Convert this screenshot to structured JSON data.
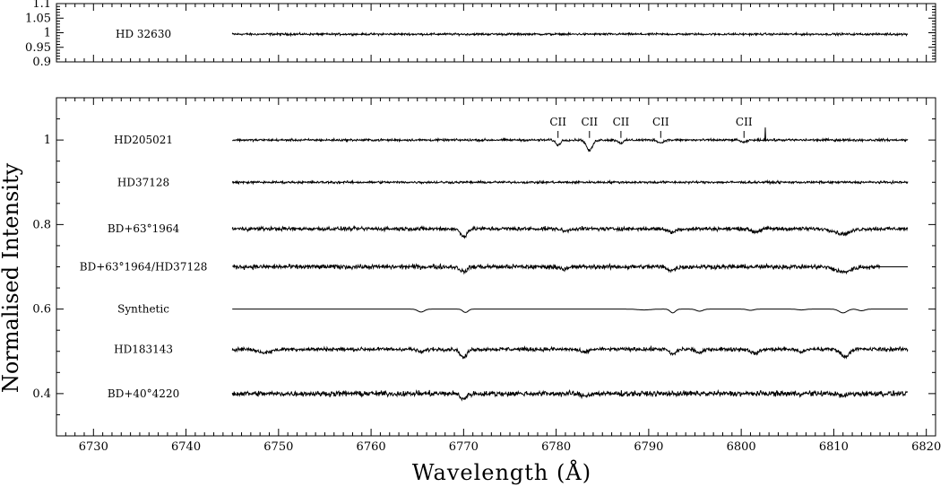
{
  "chart_data": [
    {
      "type": "line",
      "panel": "top",
      "xlim": [
        6726,
        6821
      ],
      "ylim": [
        0.9,
        1.1
      ],
      "yticks": [
        0.9,
        0.95,
        1,
        1.05,
        1.1
      ],
      "ytick_labels": [
        "0.9",
        "0.95",
        "1",
        "1.05",
        "1.1"
      ],
      "xticks": [
        6730,
        6740,
        6750,
        6760,
        6770,
        6780,
        6790,
        6800,
        6810,
        6820
      ],
      "grid": false,
      "series": [
        {
          "name": "HD 32630",
          "x_range": [
            6745,
            6818
          ],
          "level": 0.995,
          "noise": 0.004,
          "dips": []
        }
      ]
    },
    {
      "type": "line",
      "panel": "main",
      "title": "",
      "xlabel": "Wavelength (Å)",
      "ylabel": "Normalised Intensity",
      "xlim": [
        6726,
        6821
      ],
      "ylim": [
        0.3,
        1.1
      ],
      "xticks": [
        6730,
        6740,
        6750,
        6760,
        6770,
        6780,
        6790,
        6800,
        6810,
        6820
      ],
      "xtick_labels": [
        "6730",
        "6740",
        "6750",
        "6760",
        "6770",
        "6780",
        "6790",
        "6800",
        "6810",
        "6820"
      ],
      "yticks": [
        0.4,
        0.6,
        0.8,
        1
      ],
      "ytick_labels": [
        "0.4",
        "0.6",
        "0.8",
        "1"
      ],
      "grid": false,
      "annotations": [
        {
          "text": "CII",
          "x": 6780.2,
          "tick_top": 1.03,
          "tick_bottom": 1.005
        },
        {
          "text": "CII",
          "x": 6783.6,
          "tick_top": 1.03,
          "tick_bottom": 1.005
        },
        {
          "text": "CII",
          "x": 6787.0,
          "tick_top": 1.03,
          "tick_bottom": 1.005
        },
        {
          "text": "CII",
          "x": 6791.3,
          "tick_top": 1.03,
          "tick_bottom": 1.005
        },
        {
          "text": "CII",
          "x": 6800.3,
          "tick_top": 1.03,
          "tick_bottom": 1.005
        }
      ],
      "series": [
        {
          "name": "HD205021",
          "x_range": [
            6745,
            6818
          ],
          "level": 1.0,
          "noise": 0.003,
          "dips": [
            [
              6780.2,
              0.012,
              0.35
            ],
            [
              6783.6,
              0.025,
              0.45
            ],
            [
              6787.0,
              0.007,
              0.4
            ],
            [
              6791.3,
              0.007,
              0.4
            ],
            [
              6800.3,
              0.006,
              0.4
            ]
          ],
          "spikes": [
            [
              6802.6,
              0.03
            ]
          ]
        },
        {
          "name": "HD37128",
          "x_range": [
            6745,
            6818
          ],
          "level": 0.9,
          "noise": 0.003,
          "dips": []
        },
        {
          "name": "BD+63°1964",
          "x_range": [
            6745,
            6818
          ],
          "level": 0.79,
          "noise": 0.005,
          "dips": [
            [
              6770.0,
              0.018,
              0.5
            ],
            [
              6781.0,
              0.006,
              0.5
            ],
            [
              6792.5,
              0.008,
              0.6
            ],
            [
              6801.5,
              0.007,
              0.6
            ],
            [
              6811.0,
              0.012,
              1.2
            ]
          ]
        },
        {
          "name": "BD+63°1964/HD37128",
          "x_range": [
            6745,
            6818
          ],
          "level": 0.7,
          "noise": 0.006,
          "flat_from": 6815,
          "dips": [
            [
              6770.0,
              0.012,
              0.5
            ],
            [
              6781.0,
              0.006,
              0.5
            ],
            [
              6792.5,
              0.008,
              0.6
            ],
            [
              6811.0,
              0.012,
              1.2
            ]
          ]
        },
        {
          "name": "Synthetic",
          "x_range": [
            6745,
            6818
          ],
          "level": 0.6,
          "noise": 0.0,
          "dips": [
            [
              6765.4,
              0.007,
              0.5
            ],
            [
              6770.2,
              0.008,
              0.4
            ],
            [
              6789.5,
              0.002,
              1.0
            ],
            [
              6792.6,
              0.009,
              0.4
            ],
            [
              6795.5,
              0.005,
              0.5
            ],
            [
              6801.0,
              0.003,
              0.5
            ],
            [
              6806.5,
              0.002,
              0.6
            ],
            [
              6811.0,
              0.009,
              0.6
            ],
            [
              6813.0,
              0.004,
              0.5
            ]
          ]
        },
        {
          "name": "HD183143",
          "x_range": [
            6745,
            6818
          ],
          "level": 0.505,
          "noise": 0.005,
          "dips": [
            [
              6748.5,
              0.008,
              1.0
            ],
            [
              6765.4,
              0.007,
              0.5
            ],
            [
              6770.0,
              0.02,
              0.5
            ],
            [
              6783.0,
              0.008,
              0.6
            ],
            [
              6792.6,
              0.012,
              0.5
            ],
            [
              6795.5,
              0.009,
              0.5
            ],
            [
              6801.5,
              0.01,
              0.6
            ],
            [
              6806.5,
              0.006,
              0.6
            ],
            [
              6811.2,
              0.018,
              0.6
            ]
          ]
        },
        {
          "name": "BD+40°4220",
          "x_range": [
            6745,
            6818
          ],
          "level": 0.4,
          "noise": 0.007,
          "dips": [
            [
              6770.0,
              0.012,
              0.5
            ],
            [
              6783.0,
              0.005,
              0.6
            ],
            [
              6811.0,
              0.006,
              0.6
            ]
          ]
        }
      ]
    }
  ]
}
